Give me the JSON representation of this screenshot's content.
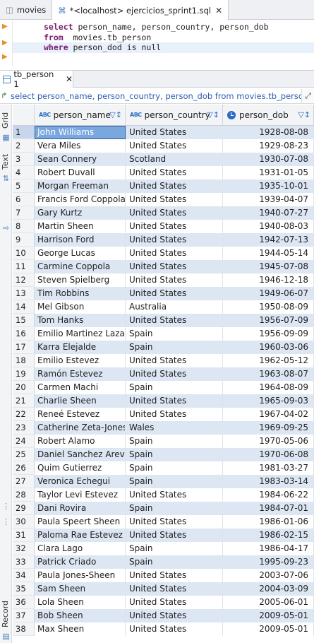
{
  "editor_tabs": [
    {
      "label": "movies",
      "active": false
    },
    {
      "label": "*<localhost> ejercicios_sprint1.sql",
      "active": true
    }
  ],
  "sql_editor": {
    "lines": [
      {
        "kw": "select",
        "rest": " person_name, person_country, person_dob"
      },
      {
        "kw": "from",
        "rest": "  movies.tb_person"
      },
      {
        "kw": "where",
        "rest": " person_dod is null",
        "kw2": ""
      }
    ]
  },
  "result_tab": {
    "label": "tb_person 1"
  },
  "sql_bar": {
    "text": "select person_name, person_country, person_dob from movies.tb_person wh"
  },
  "side_panel": {
    "grid_label": "Grid",
    "text_label": "Text",
    "record_label": "Record"
  },
  "columns": [
    {
      "label": "person_name",
      "type_icon": "ABC"
    },
    {
      "label": "person_country",
      "type_icon": "ABC"
    },
    {
      "label": "person_dob",
      "type_icon": "date"
    }
  ],
  "rows": [
    {
      "n": "1",
      "name": "John Williams",
      "country": "United States",
      "dob": "1928-08-08"
    },
    {
      "n": "2",
      "name": "Vera Miles",
      "country": "United States",
      "dob": "1929-08-23"
    },
    {
      "n": "3",
      "name": "Sean Connery",
      "country": "Scotland",
      "dob": "1930-07-08"
    },
    {
      "n": "4",
      "name": "Robert Duvall",
      "country": "United States",
      "dob": "1931-01-05"
    },
    {
      "n": "5",
      "name": "Morgan Freeman",
      "country": "United States",
      "dob": "1935-10-01"
    },
    {
      "n": "6",
      "name": "Francis Ford Coppola",
      "country": "United States",
      "dob": "1939-04-07"
    },
    {
      "n": "7",
      "name": "Gary Kurtz",
      "country": "United States",
      "dob": "1940-07-27"
    },
    {
      "n": "8",
      "name": "Martin Sheen",
      "country": "United States",
      "dob": "1940-08-03"
    },
    {
      "n": "9",
      "name": "Harrison Ford",
      "country": "United States",
      "dob": "1942-07-13"
    },
    {
      "n": "10",
      "name": "George Lucas",
      "country": "United States",
      "dob": "1944-05-14"
    },
    {
      "n": "11",
      "name": "Carmine Coppola",
      "country": "United States",
      "dob": "1945-07-08"
    },
    {
      "n": "12",
      "name": "Steven Spielberg",
      "country": "United States",
      "dob": "1946-12-18"
    },
    {
      "n": "13",
      "name": "Tim Robbins",
      "country": "United States",
      "dob": "1949-06-07"
    },
    {
      "n": "14",
      "name": "Mel Gibson",
      "country": "Australia",
      "dob": "1950-08-09"
    },
    {
      "n": "15",
      "name": "Tom Hanks",
      "country": "United States",
      "dob": "1956-07-09"
    },
    {
      "n": "16",
      "name": "Emilio Martinez Lazaro",
      "country": "Spain",
      "dob": "1956-09-09"
    },
    {
      "n": "17",
      "name": "Karra Elejalde",
      "country": "Spain",
      "dob": "1960-03-06"
    },
    {
      "n": "18",
      "name": "Emilio Estevez",
      "country": "United States",
      "dob": "1962-05-12"
    },
    {
      "n": "19",
      "name": "Ramón Estevez",
      "country": "United States",
      "dob": "1963-08-07"
    },
    {
      "n": "20",
      "name": "Carmen Machi",
      "country": "Spain",
      "dob": "1964-08-09"
    },
    {
      "n": "21",
      "name": "Charlie Sheen",
      "country": "United States",
      "dob": "1965-09-03"
    },
    {
      "n": "22",
      "name": "Reneé Estevez",
      "country": "United States",
      "dob": "1967-04-02"
    },
    {
      "n": "23",
      "name": "Catherine Zeta-Jones",
      "country": "Wales",
      "dob": "1969-09-25"
    },
    {
      "n": "24",
      "name": "Robert Alamo",
      "country": "Spain",
      "dob": "1970-05-06"
    },
    {
      "n": "25",
      "name": "Daniel Sanchez Arevalo",
      "country": "Spain",
      "dob": "1970-06-08"
    },
    {
      "n": "26",
      "name": "Quim Gutierrez",
      "country": "Spain",
      "dob": "1981-03-27"
    },
    {
      "n": "27",
      "name": "Veronica Echegui",
      "country": "Spain",
      "dob": "1983-03-14"
    },
    {
      "n": "28",
      "name": "Taylor Levi Estevez",
      "country": "United States",
      "dob": "1984-06-22"
    },
    {
      "n": "29",
      "name": "Dani Rovira",
      "country": "Spain",
      "dob": "1984-07-01"
    },
    {
      "n": "30",
      "name": "Paula Speert Sheen",
      "country": "United States",
      "dob": "1986-01-06"
    },
    {
      "n": "31",
      "name": "Paloma Rae Estevez",
      "country": "United States",
      "dob": "1986-02-15"
    },
    {
      "n": "32",
      "name": "Clara Lago",
      "country": "Spain",
      "dob": "1986-04-17"
    },
    {
      "n": "33",
      "name": "Patrick Criado",
      "country": "Spain",
      "dob": "1995-09-23"
    },
    {
      "n": "34",
      "name": "Paula Jones-Sheen",
      "country": "United States",
      "dob": "2003-07-06"
    },
    {
      "n": "35",
      "name": "Sam Sheen",
      "country": "United States",
      "dob": "2004-03-09"
    },
    {
      "n": "36",
      "name": "Lola Sheen",
      "country": "United States",
      "dob": "2005-06-01"
    },
    {
      "n": "37",
      "name": "Bob Sheen",
      "country": "United States",
      "dob": "2009-05-01"
    },
    {
      "n": "38",
      "name": "Max Sheen",
      "country": "United States",
      "dob": "2009-05-01"
    }
  ],
  "colors": {
    "selected_cell": "#7aa7dd",
    "stripe": "#dde6f3",
    "keyword": "#7a1a6f",
    "accent": "#2b6cc4"
  }
}
